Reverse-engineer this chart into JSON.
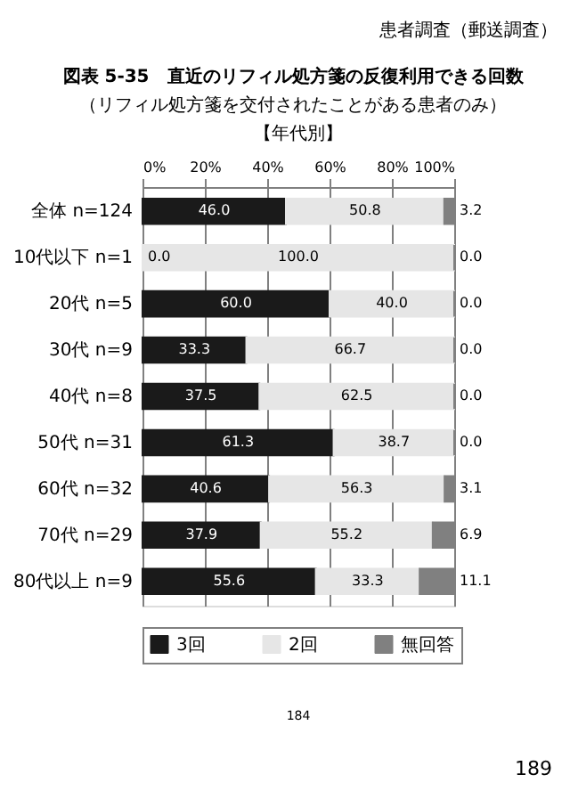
{
  "chart_data": {
    "type": "bar",
    "orientation": "horizontal",
    "stacked": true,
    "title": "図表 5-35　直近のリフィル処方箋の反復利用できる回数",
    "subtitle": "（リフィル処方箋を交付されたことがある患者のみ）",
    "categories": [
      "全体 n=124",
      "10代以下 n=1",
      "20代 n=5",
      "30代 n=9",
      "40代 n=8",
      "50代 n=31",
      "60代 n=32",
      "70代 n=29",
      "80代以上 n=9"
    ],
    "series": [
      {
        "name": "3回",
        "color": "#1a1a1a",
        "values": [
          46.0,
          0.0,
          60.0,
          33.3,
          37.5,
          61.3,
          40.6,
          37.9,
          55.6
        ],
        "value_labels": [
          "46.0",
          "0.0",
          "60.0",
          "33.3",
          "37.5",
          "61.3",
          "40.6",
          "37.9",
          "55.6"
        ]
      },
      {
        "name": "2回",
        "color": "#e6e6e6",
        "values": [
          50.8,
          100.0,
          40.0,
          66.7,
          62.5,
          38.7,
          56.3,
          55.2,
          33.3
        ],
        "value_labels": [
          "50.8",
          "100.0",
          "40.0",
          "66.7",
          "62.5",
          "38.7",
          "56.3",
          "55.2",
          "33.3"
        ]
      },
      {
        "name": "無回答",
        "color": "#808080",
        "values": [
          3.2,
          0.0,
          0.0,
          0.0,
          0.0,
          0.0,
          3.1,
          6.9,
          11.1
        ],
        "value_labels": [
          "3.2",
          "0.0",
          "0.0",
          "0.0",
          "0.0",
          "0.0",
          "3.1",
          "6.9",
          "11.1"
        ]
      }
    ],
    "xlim": [
      0,
      100
    ],
    "xticks": [
      {
        "value": 0,
        "label": "0%"
      },
      {
        "value": 20,
        "label": "20%"
      },
      {
        "value": 40,
        "label": "40%"
      },
      {
        "value": 60,
        "label": "60%"
      },
      {
        "value": 80,
        "label": "80%"
      },
      {
        "value": 100,
        "label": "100%"
      }
    ],
    "grid": "x",
    "legend": "bottom",
    "annotations": [
      "患者調査（郵送調査）",
      "【年代別】",
      "184",
      "189"
    ]
  }
}
